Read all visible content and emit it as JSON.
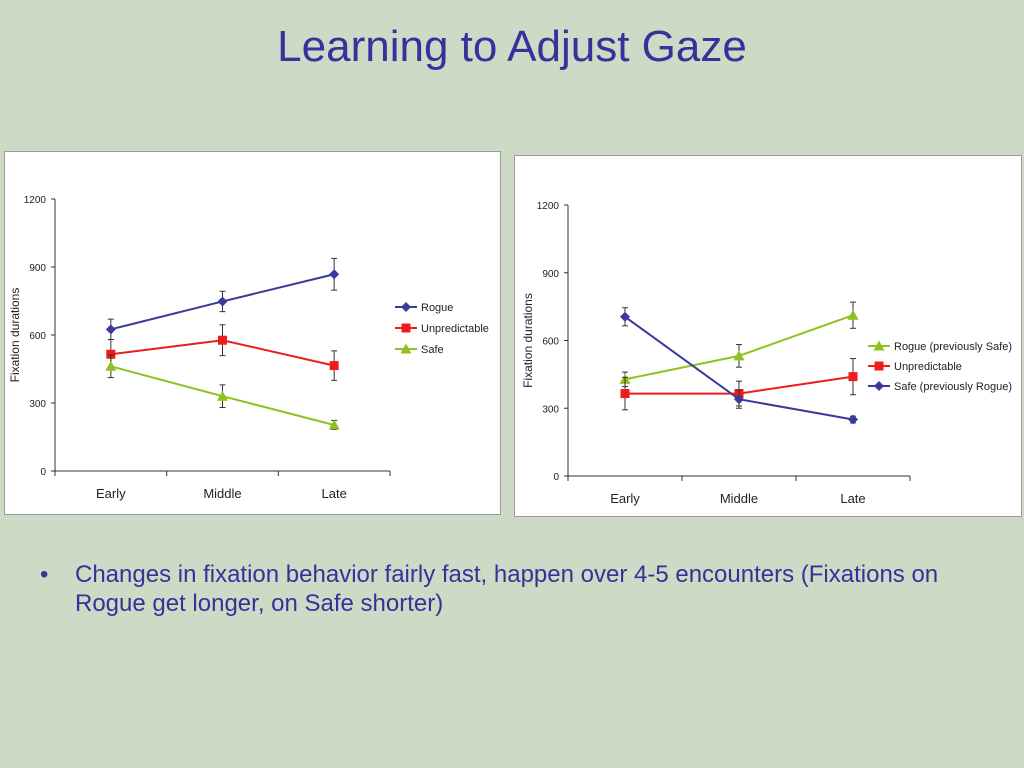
{
  "slide": {
    "title": "Learning to Adjust Gaze",
    "bullet_marker": "•",
    "bullet": "Changes in fixation behavior fairly fast, happen over 4-5 encounters (Fixations on Rogue get longer, on Safe shorter)"
  },
  "chart_data": [
    {
      "type": "line",
      "title": "",
      "xlabel": "",
      "ylabel": "Fixation durations",
      "categories": [
        "Early",
        "Middle",
        "Late"
      ],
      "ylim": [
        0,
        1200
      ],
      "yticks": [
        0,
        300,
        600,
        900,
        1200
      ],
      "grid": false,
      "legend_position": "right",
      "series": [
        {
          "name": "Rogue",
          "color": "#3a3a9c",
          "marker": "diamond",
          "values": [
            625,
            748,
            868
          ],
          "errors": [
            45,
            45,
            70
          ]
        },
        {
          "name": "Unpredictable",
          "color": "#ee1c1c",
          "marker": "square",
          "values": [
            515,
            577,
            465
          ],
          "errors": [
            65,
            68,
            65
          ]
        },
        {
          "name": "Safe",
          "color": "#8dc21f",
          "marker": "triangle",
          "values": [
            462,
            330,
            203
          ],
          "errors": [
            50,
            50,
            20
          ]
        }
      ]
    },
    {
      "type": "line",
      "title": "",
      "xlabel": "",
      "ylabel": "Fixation durations",
      "categories": [
        "Early",
        "Middle",
        "Late"
      ],
      "ylim": [
        0,
        1200
      ],
      "yticks": [
        0,
        300,
        600,
        900,
        1200
      ],
      "grid": false,
      "legend_position": "right",
      "series": [
        {
          "name": "Rogue (previously Safe)",
          "color": "#8dc21f",
          "marker": "triangle",
          "values": [
            428,
            532,
            712
          ],
          "errors": [
            32,
            50,
            58
          ]
        },
        {
          "name": "Unpredictable",
          "color": "#ee1c1c",
          "marker": "square",
          "values": [
            365,
            365,
            440
          ],
          "errors": [
            72,
            55,
            80
          ]
        },
        {
          "name": "Safe (previously Rogue)",
          "color": "#3a3a9c",
          "marker": "diamond",
          "values": [
            705,
            340,
            250
          ],
          "errors": [
            40,
            40,
            15
          ]
        }
      ]
    }
  ]
}
